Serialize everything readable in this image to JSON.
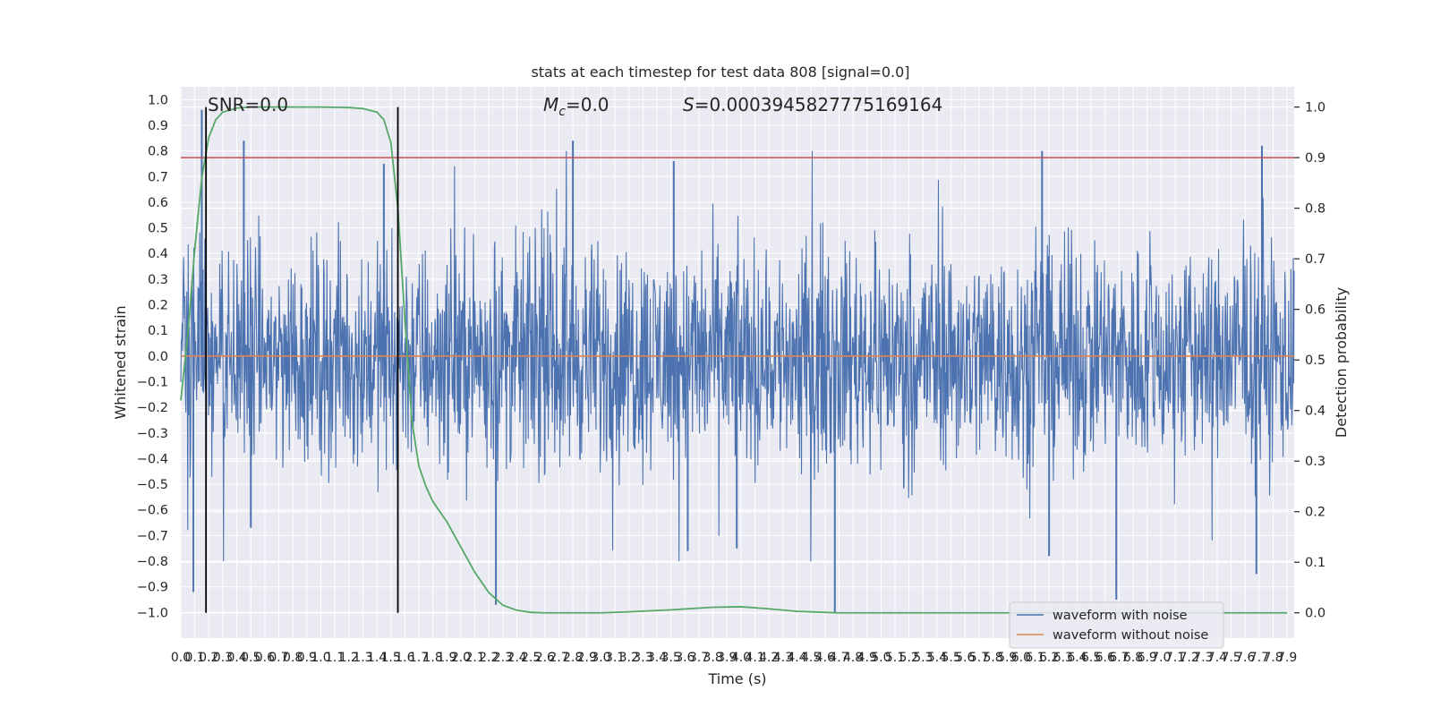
{
  "chart_data": {
    "type": "line",
    "title": "stats at each timestep for test data 808 [signal=0.0]",
    "xlabel": "Time (s)",
    "ylabel": "Whitened strain",
    "y2label": "Detection probability",
    "xlim": [
      0.0,
      7.95
    ],
    "ylim": [
      -1.1,
      1.05
    ],
    "y2lim": [
      -0.05,
      1.04
    ],
    "x_ticks": [
      "0.0",
      "0.1",
      "0.2",
      "0.3",
      "0.4",
      "0.5",
      "0.6",
      "0.7",
      "0.8",
      "0.9",
      "1.0",
      "1.1",
      "1.2",
      "1.3",
      "1.4",
      "1.5",
      "1.6",
      "1.7",
      "1.8",
      "1.9",
      "2.0",
      "2.1",
      "2.2",
      "2.3",
      "2.4",
      "2.5",
      "2.6",
      "2.7",
      "2.8",
      "2.9",
      "3.0",
      "3.1",
      "3.2",
      "3.3",
      "3.4",
      "3.5",
      "3.6",
      "3.7",
      "3.8",
      "3.9",
      "4.0",
      "4.1",
      "4.2",
      "4.3",
      "4.4",
      "4.5",
      "4.6",
      "4.7",
      "4.8",
      "4.9",
      "5.0",
      "5.1",
      "5.2",
      "5.3",
      "5.4",
      "5.5",
      "5.6",
      "5.7",
      "5.8",
      "5.9",
      "6.0",
      "6.1",
      "6.2",
      "6.3",
      "6.4",
      "6.5",
      "6.6",
      "6.7",
      "6.8",
      "6.9",
      "7.0",
      "7.1",
      "7.2",
      "7.3",
      "7.4",
      "7.5",
      "7.6",
      "7.7",
      "7.8",
      "7.9"
    ],
    "y_ticks": [
      "−1.0",
      "−0.9",
      "−0.8",
      "−0.7",
      "−0.6",
      "−0.5",
      "−0.4",
      "−0.3",
      "−0.2",
      "−0.1",
      "0.0",
      "0.1",
      "0.2",
      "0.3",
      "0.4",
      "0.5",
      "0.6",
      "0.7",
      "0.8",
      "0.9",
      "1.0"
    ],
    "y2_ticks": [
      "0.0",
      "0.1",
      "0.2",
      "0.3",
      "0.4",
      "0.5",
      "0.6",
      "0.7",
      "0.8",
      "0.9",
      "1.0"
    ],
    "annotations": {
      "snr": "SNR=0.0",
      "mc_symbol": "M",
      "mc_subscript": "c",
      "mc_value": "=0.0",
      "s_symbol": "S",
      "s_value": "=0.0003945827775169164"
    },
    "series": [
      {
        "name": "waveform with noise",
        "color": "#4c72b0",
        "axis": "left",
        "note": "dense noise trace; envelope roughly ±0.35 with spikes",
        "spikes": [
          [
            0.09,
            -0.92
          ],
          [
            0.15,
            0.96
          ],
          [
            0.45,
            0.84
          ],
          [
            0.5,
            -0.67
          ],
          [
            1.45,
            0.75
          ],
          [
            2.25,
            -0.97
          ],
          [
            2.8,
            0.84
          ],
          [
            3.52,
            0.76
          ],
          [
            3.62,
            -0.76
          ],
          [
            3.97,
            -0.75
          ],
          [
            4.67,
            -1.0
          ],
          [
            6.15,
            0.8
          ],
          [
            6.2,
            -0.78
          ],
          [
            6.68,
            -0.95
          ],
          [
            7.72,
            0.82
          ],
          [
            7.68,
            -0.85
          ]
        ]
      },
      {
        "name": "waveform without noise",
        "color": "#dd8452",
        "axis": "left",
        "x": [
          0.0,
          7.95
        ],
        "y": [
          0.0,
          0.0
        ]
      },
      {
        "color": "#55a868",
        "axis": "right",
        "x": [
          0.0,
          0.05,
          0.1,
          0.15,
          0.2,
          0.25,
          0.3,
          0.4,
          0.5,
          0.6,
          0.8,
          1.0,
          1.2,
          1.3,
          1.4,
          1.45,
          1.5,
          1.55,
          1.6,
          1.65,
          1.7,
          1.75,
          1.8,
          1.9,
          2.0,
          2.1,
          2.2,
          2.3,
          2.4,
          2.5,
          2.6,
          2.8,
          3.0,
          3.2,
          3.5,
          3.8,
          4.0,
          4.2,
          4.4,
          4.7,
          5.0,
          5.5,
          6.0,
          7.0,
          7.9
        ],
        "y": [
          0.42,
          0.55,
          0.72,
          0.86,
          0.94,
          0.975,
          0.99,
          0.998,
          1.0,
          1.0,
          1.0,
          1.0,
          0.999,
          0.997,
          0.99,
          0.975,
          0.93,
          0.8,
          0.58,
          0.38,
          0.29,
          0.25,
          0.22,
          0.18,
          0.13,
          0.08,
          0.04,
          0.015,
          0.005,
          0.001,
          0.0,
          0.0,
          0.0,
          0.002,
          0.006,
          0.011,
          0.012,
          0.008,
          0.003,
          0.0,
          0.0,
          0.0,
          0.0,
          0.0,
          0.0
        ]
      },
      {
        "color": "#c44e52",
        "axis": "right",
        "kind": "threshold",
        "y": 0.9
      },
      {
        "color": "#000000",
        "kind": "vertical-markers",
        "x": [
          0.18,
          1.55
        ],
        "y2_range": [
          0.0,
          1.0
        ]
      }
    ],
    "legend": {
      "placement": "lower-right",
      "entries": [
        "waveform with noise",
        "waveform without noise"
      ]
    },
    "grid": true,
    "colors": {
      "background": "#eaeaf2",
      "grid": "#ffffff",
      "noise": "#4c72b0",
      "clean": "#dd8452",
      "probability": "#55a868",
      "threshold": "#c44e52",
      "marker": "#000000"
    }
  }
}
